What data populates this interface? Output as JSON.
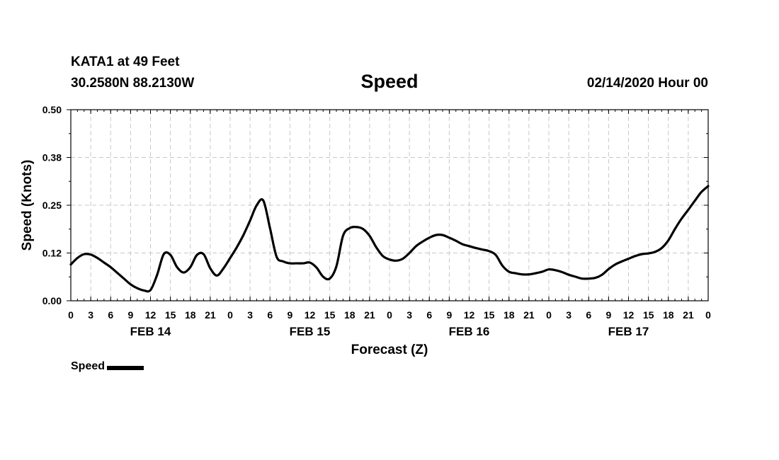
{
  "header": {
    "station": "KATA1 at 49 Feet",
    "coords": "30.2580N 88.2130W",
    "datetime": "02/14/2020 Hour 00"
  },
  "chart_data": {
    "type": "line",
    "title": "Speed",
    "xlabel": "Forecast (Z)",
    "ylabel": "Speed (Knots)",
    "ylim": [
      0,
      0.5
    ],
    "yticks": [
      0.0,
      0.125,
      0.25,
      0.375,
      0.5
    ],
    "ytick_labels": [
      "0.00",
      "0.12",
      "0.25",
      "0.38",
      "0.50"
    ],
    "xlim": [
      0,
      96
    ],
    "xtick_step_hours": 3,
    "xtick_labels": [
      "0",
      "3",
      "6",
      "9",
      "12",
      "15",
      "18",
      "21",
      "0",
      "3",
      "6",
      "9",
      "12",
      "15",
      "18",
      "21",
      "0",
      "3",
      "6",
      "9",
      "12",
      "15",
      "18",
      "21",
      "0",
      "3",
      "6",
      "9",
      "12",
      "15",
      "18",
      "21",
      "0"
    ],
    "day_labels": [
      {
        "label": "FEB 14",
        "hour": 12
      },
      {
        "label": "FEB 15",
        "hour": 36
      },
      {
        "label": "FEB 16",
        "hour": 60
      },
      {
        "label": "FEB 17",
        "hour": 84
      }
    ],
    "grid": true,
    "legend_placement": "bottom-left",
    "series": [
      {
        "name": "Speed",
        "color": "#000000",
        "x": [
          0,
          1,
          2,
          3,
          4,
          5,
          6,
          7,
          8,
          9,
          10,
          11,
          12,
          13,
          14,
          15,
          16,
          17,
          18,
          19,
          20,
          21,
          22,
          23,
          24,
          25,
          26,
          27,
          28,
          29,
          30,
          31,
          32,
          33,
          34,
          35,
          36,
          37,
          38,
          39,
          40,
          41,
          42,
          43,
          44,
          45,
          46,
          47,
          48,
          49,
          50,
          51,
          52,
          53,
          54,
          55,
          56,
          57,
          58,
          59,
          60,
          61,
          62,
          63,
          64,
          65,
          66,
          67,
          68,
          69,
          70,
          71,
          72,
          73,
          74,
          75,
          76,
          77,
          78,
          79,
          80,
          81,
          82,
          83,
          84,
          85,
          86,
          87,
          88,
          89,
          90,
          91,
          92,
          93,
          94,
          95,
          96
        ],
        "values": [
          0.095,
          0.112,
          0.122,
          0.121,
          0.112,
          0.1,
          0.088,
          0.073,
          0.058,
          0.043,
          0.033,
          0.027,
          0.028,
          0.068,
          0.122,
          0.12,
          0.088,
          0.074,
          0.088,
          0.12,
          0.122,
          0.085,
          0.066,
          0.085,
          0.112,
          0.14,
          0.172,
          0.21,
          0.25,
          0.262,
          0.19,
          0.115,
          0.103,
          0.098,
          0.098,
          0.098,
          0.1,
          0.087,
          0.063,
          0.058,
          0.09,
          0.17,
          0.19,
          0.193,
          0.188,
          0.17,
          0.14,
          0.117,
          0.108,
          0.105,
          0.11,
          0.125,
          0.143,
          0.155,
          0.165,
          0.172,
          0.172,
          0.165,
          0.157,
          0.148,
          0.143,
          0.138,
          0.134,
          0.13,
          0.12,
          0.092,
          0.076,
          0.072,
          0.069,
          0.069,
          0.072,
          0.076,
          0.082,
          0.08,
          0.075,
          0.068,
          0.063,
          0.058,
          0.058,
          0.06,
          0.068,
          0.083,
          0.095,
          0.103,
          0.11,
          0.117,
          0.122,
          0.124,
          0.128,
          0.138,
          0.158,
          0.188,
          0.215,
          0.238,
          0.262,
          0.285,
          0.3
        ]
      }
    ]
  },
  "legend": {
    "label": "Speed"
  }
}
